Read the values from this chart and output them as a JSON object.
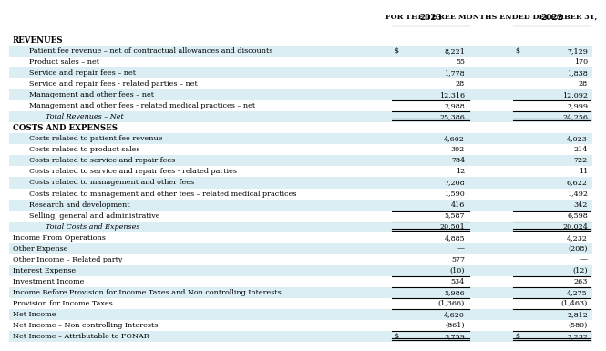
{
  "title": "FOR THE THREE MONTHS ENDED DECEMBER 31,",
  "col_headers": [
    "2023",
    "2022"
  ],
  "bg_white": "#ffffff",
  "bg_blue": "#daeef3",
  "rows": [
    {
      "label": "REVENUES",
      "v2023": "",
      "v2022": "",
      "bold": true,
      "italic": false,
      "indent": 0,
      "top_line": false,
      "double_line": false,
      "dollar2023": false,
      "dollar2022": false,
      "bg": "white"
    },
    {
      "label": "Patient fee revenue – net of contractual allowances and discounts",
      "v2023": "8,221",
      "v2022": "7,129",
      "bold": false,
      "italic": false,
      "indent": 1,
      "top_line": false,
      "double_line": false,
      "dollar2023": true,
      "dollar2022": true,
      "bg": "blue"
    },
    {
      "label": "Product sales – net",
      "v2023": "55",
      "v2022": "170",
      "bold": false,
      "italic": false,
      "indent": 1,
      "top_line": false,
      "double_line": false,
      "dollar2023": false,
      "dollar2022": false,
      "bg": "white"
    },
    {
      "label": "Service and repair fees – net",
      "v2023": "1,778",
      "v2022": "1,838",
      "bold": false,
      "italic": false,
      "indent": 1,
      "top_line": false,
      "double_line": false,
      "dollar2023": false,
      "dollar2022": false,
      "bg": "blue"
    },
    {
      "label": "Service and repair fees - related parties – net",
      "v2023": "28",
      "v2022": "28",
      "bold": false,
      "italic": false,
      "indent": 1,
      "top_line": false,
      "double_line": false,
      "dollar2023": false,
      "dollar2022": false,
      "bg": "white"
    },
    {
      "label": "Management and other fees – net",
      "v2023": "12,316",
      "v2022": "12,092",
      "bold": false,
      "italic": false,
      "indent": 1,
      "top_line": false,
      "double_line": false,
      "dollar2023": false,
      "dollar2022": false,
      "bg": "blue"
    },
    {
      "label": "Management and other fees - related medical practices – net",
      "v2023": "2,988",
      "v2022": "2,999",
      "bold": false,
      "italic": false,
      "indent": 1,
      "top_line": true,
      "double_line": false,
      "dollar2023": false,
      "dollar2022": false,
      "bg": "white"
    },
    {
      "label": "Total Revenues – Net",
      "v2023": "25,386",
      "v2022": "24,256",
      "bold": false,
      "italic": true,
      "indent": 2,
      "top_line": true,
      "double_line": true,
      "dollar2023": false,
      "dollar2022": false,
      "bg": "blue"
    },
    {
      "label": "COSTS AND EXPENSES",
      "v2023": "",
      "v2022": "",
      "bold": true,
      "italic": false,
      "indent": 0,
      "top_line": false,
      "double_line": false,
      "dollar2023": false,
      "dollar2022": false,
      "bg": "white"
    },
    {
      "label": "Costs related to patient fee revenue",
      "v2023": "4,602",
      "v2022": "4,023",
      "bold": false,
      "italic": false,
      "indent": 1,
      "top_line": false,
      "double_line": false,
      "dollar2023": false,
      "dollar2022": false,
      "bg": "blue"
    },
    {
      "label": "Costs related to product sales",
      "v2023": "302",
      "v2022": "214",
      "bold": false,
      "italic": false,
      "indent": 1,
      "top_line": false,
      "double_line": false,
      "dollar2023": false,
      "dollar2022": false,
      "bg": "white"
    },
    {
      "label": "Costs related to service and repair fees",
      "v2023": "784",
      "v2022": "722",
      "bold": false,
      "italic": false,
      "indent": 1,
      "top_line": false,
      "double_line": false,
      "dollar2023": false,
      "dollar2022": false,
      "bg": "blue"
    },
    {
      "label": "Costs related to service and repair fees - related parties",
      "v2023": "12",
      "v2022": "11",
      "bold": false,
      "italic": false,
      "indent": 1,
      "top_line": false,
      "double_line": false,
      "dollar2023": false,
      "dollar2022": false,
      "bg": "white"
    },
    {
      "label": "Costs related to management and other fees",
      "v2023": "7,208",
      "v2022": "6,622",
      "bold": false,
      "italic": false,
      "indent": 1,
      "top_line": false,
      "double_line": false,
      "dollar2023": false,
      "dollar2022": false,
      "bg": "blue"
    },
    {
      "label": "Costs related to management and other fees – related medical practices",
      "v2023": "1,590",
      "v2022": "1,492",
      "bold": false,
      "italic": false,
      "indent": 1,
      "top_line": false,
      "double_line": false,
      "dollar2023": false,
      "dollar2022": false,
      "bg": "white"
    },
    {
      "label": "Research and development",
      "v2023": "416",
      "v2022": "342",
      "bold": false,
      "italic": false,
      "indent": 1,
      "top_line": false,
      "double_line": false,
      "dollar2023": false,
      "dollar2022": false,
      "bg": "blue"
    },
    {
      "label": "Selling, general and administrative",
      "v2023": "5,587",
      "v2022": "6,598",
      "bold": false,
      "italic": false,
      "indent": 1,
      "top_line": true,
      "double_line": false,
      "dollar2023": false,
      "dollar2022": false,
      "bg": "white"
    },
    {
      "label": "Total Costs and Expenses",
      "v2023": "20,501",
      "v2022": "20,024",
      "bold": false,
      "italic": true,
      "indent": 2,
      "top_line": true,
      "double_line": true,
      "dollar2023": false,
      "dollar2022": false,
      "bg": "blue"
    },
    {
      "label": "Income From Operations",
      "v2023": "4,885",
      "v2022": "4,232",
      "bold": false,
      "italic": false,
      "indent": 0,
      "top_line": false,
      "double_line": false,
      "dollar2023": false,
      "dollar2022": false,
      "bg": "white"
    },
    {
      "label": "Other Expense",
      "v2023": "—",
      "v2022": "(208)",
      "bold": false,
      "italic": false,
      "indent": 0,
      "top_line": false,
      "double_line": false,
      "dollar2023": false,
      "dollar2022": false,
      "bg": "blue"
    },
    {
      "label": "Other Income – Related party",
      "v2023": "577",
      "v2022": "—",
      "bold": false,
      "italic": false,
      "indent": 0,
      "top_line": false,
      "double_line": false,
      "dollar2023": false,
      "dollar2022": false,
      "bg": "white"
    },
    {
      "label": "Interest Expense",
      "v2023": "(10)",
      "v2022": "(12)",
      "bold": false,
      "italic": false,
      "indent": 0,
      "top_line": false,
      "double_line": false,
      "dollar2023": false,
      "dollar2022": false,
      "bg": "blue"
    },
    {
      "label": "Investment Income",
      "v2023": "534",
      "v2022": "263",
      "bold": false,
      "italic": false,
      "indent": 0,
      "top_line": true,
      "double_line": false,
      "dollar2023": false,
      "dollar2022": false,
      "bg": "white"
    },
    {
      "label": "Income Before Provision for Income Taxes and Non controlling Interests",
      "v2023": "5,986",
      "v2022": "4,275",
      "bold": false,
      "italic": false,
      "indent": 0,
      "top_line": true,
      "double_line": false,
      "dollar2023": false,
      "dollar2022": false,
      "bg": "blue"
    },
    {
      "label": "Provision for Income Taxes",
      "v2023": "(1,366)",
      "v2022": "(1,463)",
      "bold": false,
      "italic": false,
      "indent": 0,
      "top_line": true,
      "double_line": false,
      "dollar2023": false,
      "dollar2022": false,
      "bg": "white"
    },
    {
      "label": "Net Income",
      "v2023": "4,620",
      "v2022": "2,812",
      "bold": false,
      "italic": false,
      "indent": 0,
      "top_line": true,
      "double_line": false,
      "dollar2023": false,
      "dollar2022": false,
      "bg": "blue"
    },
    {
      "label": "Net Income – Non controlling Interests",
      "v2023": "(861)",
      "v2022": "(580)",
      "bold": false,
      "italic": false,
      "indent": 0,
      "top_line": false,
      "double_line": false,
      "dollar2023": false,
      "dollar2022": false,
      "bg": "white"
    },
    {
      "label": "Net Income – Attributable to FONAR",
      "v2023": "3,759",
      "v2022": "2,232",
      "bold": false,
      "italic": false,
      "indent": 0,
      "top_line": true,
      "double_line": true,
      "dollar2023": true,
      "dollar2022": true,
      "bg": "blue"
    }
  ]
}
